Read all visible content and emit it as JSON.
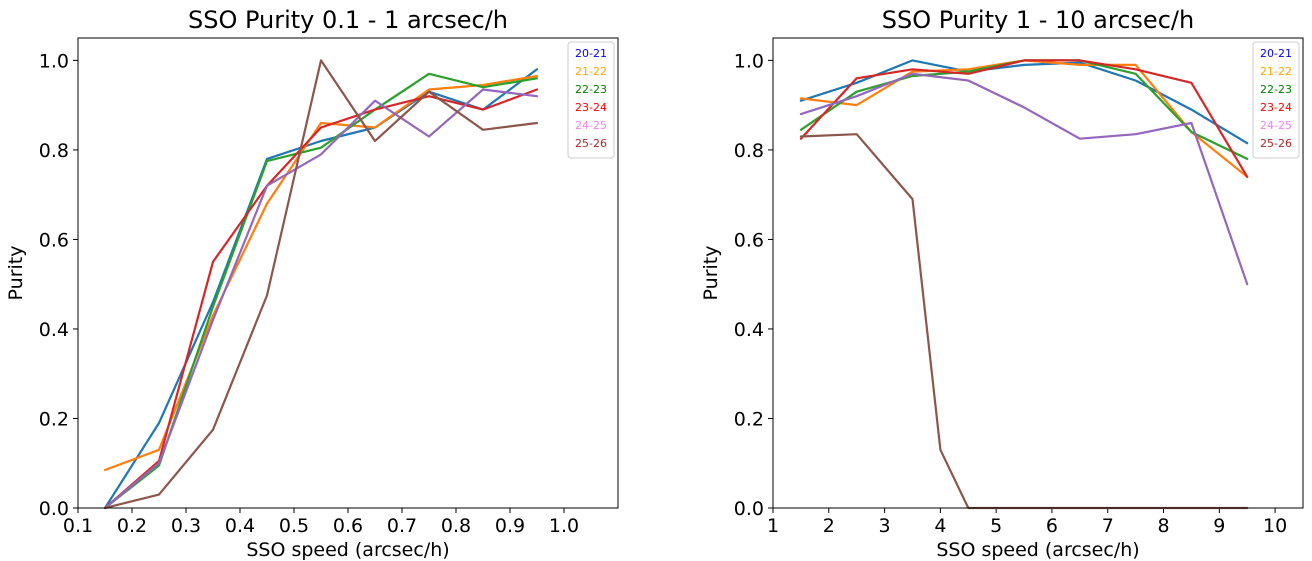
{
  "chart_data": [
    {
      "type": "line",
      "title": "SSO Purity 0.1 - 1 arcsec/h",
      "xlabel": "SSO speed (arcsec/h)",
      "ylabel": "Purity",
      "xlim": [
        0.1,
        1.1
      ],
      "ylim": [
        0.0,
        1.05
      ],
      "xticks": [
        "0.1",
        "0.2",
        "0.3",
        "0.4",
        "0.5",
        "0.6",
        "0.7",
        "0.8",
        "0.9",
        "1.0"
      ],
      "yticks": [
        "0.0",
        "0.2",
        "0.4",
        "0.6",
        "0.8",
        "1.0"
      ],
      "legend_position": "top-right",
      "grid": false,
      "x": [
        0.15,
        0.25,
        0.35,
        0.45,
        0.55,
        0.65,
        0.75,
        0.85,
        0.95
      ],
      "series": [
        {
          "name": "20-21",
          "color": "#1f77b4",
          "legend_color": "#0000ff",
          "values": [
            0.0,
            0.19,
            0.46,
            0.78,
            0.82,
            0.85,
            0.93,
            0.89,
            0.98
          ]
        },
        {
          "name": "21-22",
          "color": "#ff7f0e",
          "legend_color": "#ffa500",
          "values": [
            0.085,
            0.13,
            0.43,
            0.68,
            0.86,
            0.85,
            0.935,
            0.945,
            0.965
          ]
        },
        {
          "name": "22-23",
          "color": "#2ca02c",
          "legend_color": "#008000",
          "values": [
            0.0,
            0.095,
            0.45,
            0.775,
            0.805,
            0.89,
            0.97,
            0.94,
            0.96
          ]
        },
        {
          "name": "23-24",
          "color": "#d62728",
          "legend_color": "#ff0000",
          "values": [
            0.0,
            0.105,
            0.55,
            0.72,
            0.85,
            0.89,
            0.92,
            0.89,
            0.935
          ]
        },
        {
          "name": "24-25",
          "color": "#9467bd",
          "legend_color": "#ee82ee",
          "values": [
            0.0,
            0.1,
            0.42,
            0.72,
            0.79,
            0.91,
            0.83,
            0.935,
            0.92
          ]
        },
        {
          "name": "25-26",
          "color": "#8c564b",
          "legend_color": "#a52a2a",
          "values": [
            0.0,
            0.03,
            0.175,
            0.475,
            1.0,
            0.82,
            0.93,
            0.845,
            0.86
          ]
        }
      ]
    },
    {
      "type": "line",
      "title": "SSO Purity 1 - 10 arcsec/h",
      "xlabel": "SSO speed (arcsec/h)",
      "ylabel": "Purity",
      "xlim": [
        1,
        10.5
      ],
      "ylim": [
        0.0,
        1.05
      ],
      "xticks": [
        "1",
        "2",
        "3",
        "4",
        "5",
        "6",
        "7",
        "8",
        "9",
        "10"
      ],
      "yticks": [
        "0.0",
        "0.2",
        "0.4",
        "0.6",
        "0.8",
        "1.0"
      ],
      "legend_position": "top-right",
      "grid": false,
      "x": [
        1.5,
        2.5,
        3.5,
        4.5,
        5.5,
        6.5,
        7.5,
        8.5,
        9.5
      ],
      "series": [
        {
          "name": "20-21",
          "color": "#1f77b4",
          "legend_color": "#0000ff",
          "values": [
            0.91,
            0.95,
            1.0,
            0.975,
            0.99,
            0.995,
            0.955,
            0.89,
            0.815
          ]
        },
        {
          "name": "21-22",
          "color": "#ff7f0e",
          "legend_color": "#ffa500",
          "values": [
            0.915,
            0.9,
            0.975,
            0.98,
            1.0,
            0.99,
            0.99,
            0.84,
            0.74
          ]
        },
        {
          "name": "22-23",
          "color": "#2ca02c",
          "legend_color": "#008000",
          "values": [
            0.845,
            0.93,
            0.965,
            0.975,
            1.0,
            1.0,
            0.97,
            0.84,
            0.78
          ]
        },
        {
          "name": "23-24",
          "color": "#d62728",
          "legend_color": "#ff0000",
          "values": [
            0.825,
            0.96,
            0.98,
            0.97,
            1.0,
            1.0,
            0.98,
            0.95,
            0.74
          ]
        },
        {
          "name": "24-25",
          "color": "#9467bd",
          "legend_color": "#ee82ee",
          "values": [
            0.88,
            0.92,
            0.97,
            0.955,
            0.895,
            0.825,
            0.835,
            0.86,
            0.5
          ]
        },
        {
          "name": "25-26",
          "color": "#8c564b",
          "legend_color": "#a52a2a",
          "x": [
            1.5,
            2.5,
            3.5,
            4.0,
            4.5,
            5.5,
            6.5,
            7.5,
            8.5,
            9.5
          ],
          "values": [
            0.83,
            0.835,
            0.69,
            0.13,
            0.0,
            0.0,
            0.0,
            0.0,
            0.0,
            0.0
          ]
        }
      ]
    }
  ]
}
